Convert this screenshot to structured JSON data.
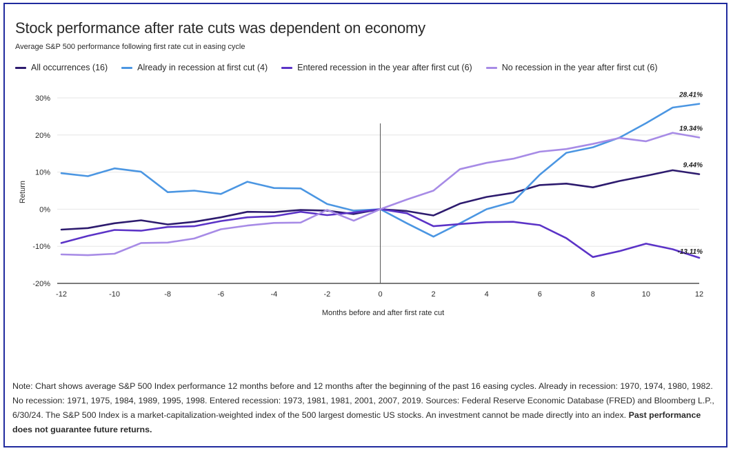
{
  "title": "Stock performance after rate cuts was dependent on economy",
  "subtitle": "Average S&P 500 performance following first rate cut in easing cycle",
  "note": {
    "text": "Note: Chart shows average S&P 500 Index performance 12 months before and 12 months after the beginning of the past 16 easing cycles. Already in recession: 1970, 1974, 1980, 1982. No recession: 1971, 1975, 1984, 1989, 1995, 1998. Entered recession: 1973, 1981, 1981, 2001, 2007, 2019. Sources: Federal Reserve Economic Database (FRED) and Bloomberg L.P., 6/30/24. The S&P 500 Index is a market-capitalization-weighted index of the 500 largest domestic US stocks. An investment cannot be made directly into an index.",
    "bold": "Past performance does not guarantee future returns."
  },
  "colors": {
    "frame": "#1f2a9e",
    "grid": "#e6e6e6",
    "axis": "#2a2a2a"
  },
  "chart_data": {
    "type": "line",
    "title": "Stock performance after rate cuts was dependent on economy",
    "subtitle": "Average S&P 500 performance following first rate cut in easing cycle",
    "xlabel": "Months before and after first rate cut",
    "ylabel": "Return",
    "x": [
      -12,
      -11,
      -10,
      -9,
      -8,
      -7,
      -6,
      -5,
      -4,
      -3,
      -2,
      -1,
      0,
      1,
      2,
      3,
      4,
      5,
      6,
      7,
      8,
      9,
      10,
      11,
      12
    ],
    "x_ticks": [
      "-12",
      "-10",
      "-8",
      "-6",
      "-4",
      "-2",
      "0",
      "2",
      "4",
      "6",
      "8",
      "10",
      "12"
    ],
    "y_ticks": [
      "30%",
      "20%",
      "10%",
      "0%",
      "-10%",
      "-20%"
    ],
    "xlim": [
      -12,
      12
    ],
    "ylim": [
      -20,
      30
    ],
    "grid": "horizontal",
    "legend_position": "top",
    "reference_line_x": 0,
    "series": [
      {
        "name": "All occurrences (16)",
        "color": "#2d1b6e",
        "end_label": "9.44%",
        "values": [
          -5.5,
          -5.1,
          -3.8,
          -3.0,
          -4.1,
          -3.4,
          -2.2,
          -0.7,
          -0.8,
          -0.2,
          -0.4,
          -1.3,
          0,
          -0.5,
          -1.7,
          1.5,
          3.3,
          4.4,
          6.5,
          6.9,
          5.9,
          7.6,
          9.0,
          10.5,
          9.44
        ]
      },
      {
        "name": "Already in recession at first cut (4)",
        "color": "#4b96e2",
        "end_label": "28.41%",
        "values": [
          9.7,
          8.9,
          11.0,
          10.1,
          4.6,
          5.0,
          4.1,
          7.4,
          5.7,
          5.6,
          1.4,
          -0.4,
          0,
          -3.8,
          -7.4,
          -3.8,
          0,
          2.0,
          9.3,
          15.2,
          16.7,
          19.3,
          23.2,
          27.4,
          28.41
        ]
      },
      {
        "name": "Entered recession in the year after first cut (6)",
        "color": "#5b33c7",
        "end_label": "-13.11%",
        "values": [
          -9.1,
          -7.2,
          -5.6,
          -5.8,
          -4.8,
          -4.6,
          -3.2,
          -2.2,
          -1.9,
          -0.7,
          -1.6,
          -0.9,
          0,
          -1.1,
          -4.6,
          -4.0,
          -3.5,
          -3.4,
          -4.3,
          -7.8,
          -12.9,
          -11.3,
          -9.3,
          -10.8,
          -13.11
        ]
      },
      {
        "name": "No recession in the year after first cut (6)",
        "color": "#a78be6",
        "end_label": "19.34%",
        "values": [
          -12.2,
          -12.4,
          -12.0,
          -9.1,
          -9.0,
          -7.9,
          -5.4,
          -4.4,
          -3.7,
          -3.6,
          -0.2,
          -3.1,
          0,
          2.6,
          5.0,
          10.8,
          12.5,
          13.6,
          15.5,
          16.2,
          17.6,
          19.2,
          18.3,
          20.6,
          19.34
        ]
      }
    ]
  }
}
